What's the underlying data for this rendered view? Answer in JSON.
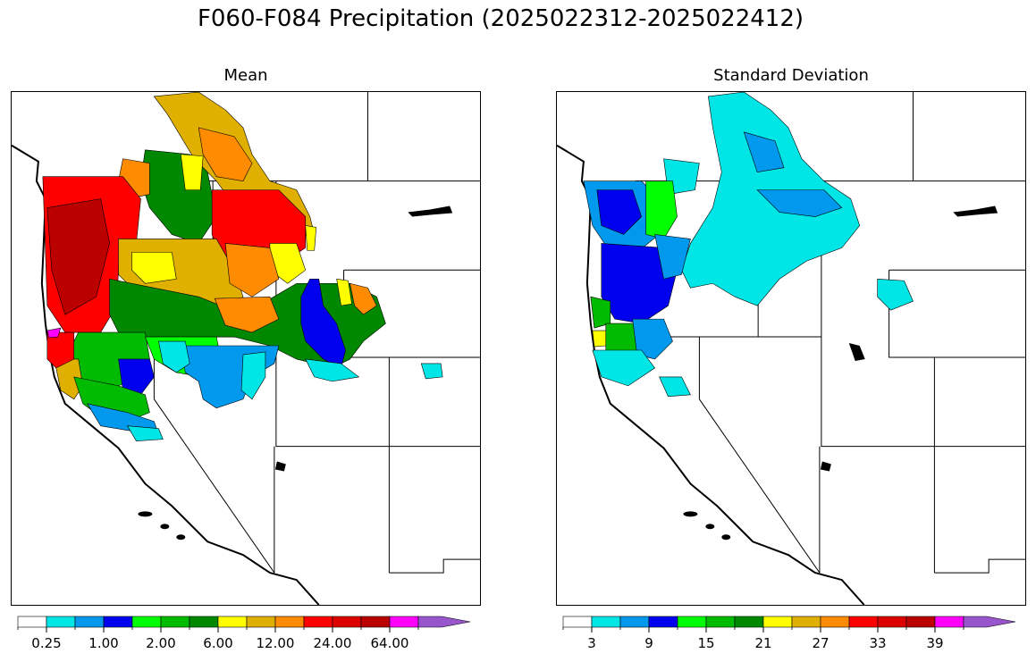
{
  "title": "F060-F084 Precipitation (2025022312-2025022412)",
  "colors": [
    "#ffffff",
    "#00e5e5",
    "#0099ee",
    "#0000ee",
    "#00ff00",
    "#00bb00",
    "#008800",
    "#ffff00",
    "#e0b000",
    "#ff8c00",
    "#ff0000",
    "#dd0000",
    "#bb0000",
    "#ff00ff",
    "#9955cc"
  ],
  "panels": [
    {
      "title": "Mean",
      "colorbar_labels": [
        "0.25",
        "1.00",
        "2.00",
        "6.00",
        "12.00",
        "24.00",
        "64.00"
      ]
    },
    {
      "title": "Standard Deviation",
      "colorbar_labels": [
        "3",
        "9",
        "15",
        "21",
        "27",
        "33",
        "39"
      ]
    }
  ]
}
